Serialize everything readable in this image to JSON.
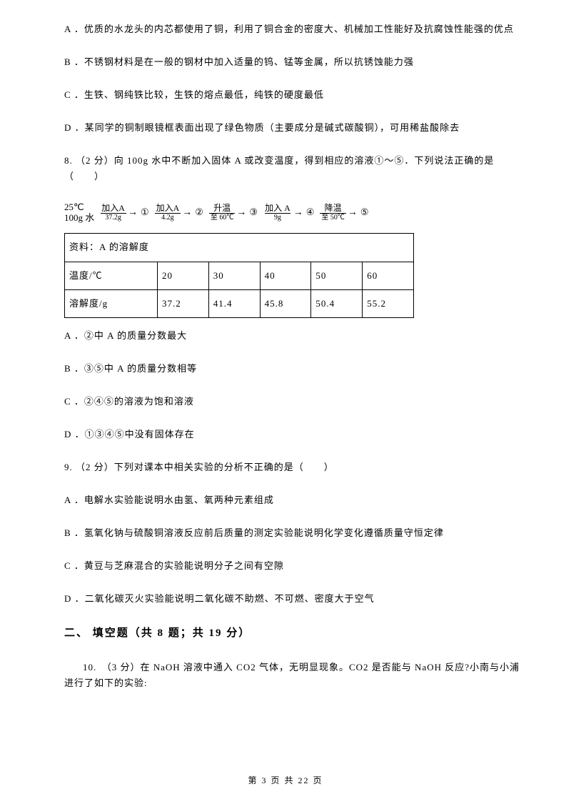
{
  "q7": {
    "optA": "A ．优质的水龙头的内芯都使用了铜，利用了铜合金的密度大、机械加工性能好及抗腐蚀性能强的优点",
    "optB": "B ．不锈钢材料是在一般的钢材中加入适量的钨、锰等金属，所以抗锈蚀能力强",
    "optC": "C ．生铁、钢纯铁比较，生铁的熔点最低，纯铁的硬度最低",
    "optD": "D ．某同学的铜制眼镜框表面出现了绿色物质（主要成分是碱式碳酸铜），可用稀盐酸除去"
  },
  "q8": {
    "stem": "8. （2 分）向 100g 水中不断加入固体 A 或改变温度，得到相应的溶液①～⑤．下列说法正确的是（　　）",
    "diagram": {
      "init_line1": "25℃",
      "init_line2": "100g 水",
      "s1_top": "加入A",
      "s1_bot": "37.2g",
      "n1": "①",
      "s2_top": "加入A",
      "s2_bot": "4.2g",
      "n2": "②",
      "s3_top": "升温",
      "s3_bot": "至 60℃",
      "n3": "③",
      "s4_top": "加入 A",
      "s4_bot": "9g",
      "n4": "④",
      "s5_top": "降温",
      "s5_bot": "至 50℃",
      "n5": "⑤"
    },
    "table_caption": "资料：A 的溶解度",
    "table": {
      "row1_label": "温度/℃",
      "row2_label": "溶解度/g",
      "t": [
        "20",
        "30",
        "40",
        "50",
        "60"
      ],
      "s": [
        "37.2",
        "41.4",
        "45.8",
        "50.4",
        "55.2"
      ]
    },
    "optA": "A ．②中 A 的质量分数最大",
    "optB": "B ．③⑤中 A 的质量分数相等",
    "optC": "C ．②④⑤的溶液为饱和溶液",
    "optD": "D ．①③④⑤中没有固体存在"
  },
  "q9": {
    "stem": "9. （2 分）下列对课本中相关实验的分析不正确的是（　　）",
    "optA": "A ．电解水实验能说明水由氢、氧两种元素组成",
    "optB": "B ．氢氧化钠与硫酸铜溶液反应前后质量的测定实验能说明化学变化遵循质量守恒定律",
    "optC": "C ．黄豆与芝麻混合的实验能说明分子之间有空隙",
    "optD": "D ．二氧化碳灭火实验能说明二氧化碳不助燃、不可燃、密度大于空气"
  },
  "section2_title": "二、 填空题（共 8 题；共 19 分）",
  "q10": {
    "stem": "10.　（3 分）在 NaOH 溶液中通入 CO2 气体，无明显现象。CO2 是否能与 NaOH 反应?小南与小浦进行了如下的实验:"
  },
  "footer_text": "第 3 页 共 22 页"
}
